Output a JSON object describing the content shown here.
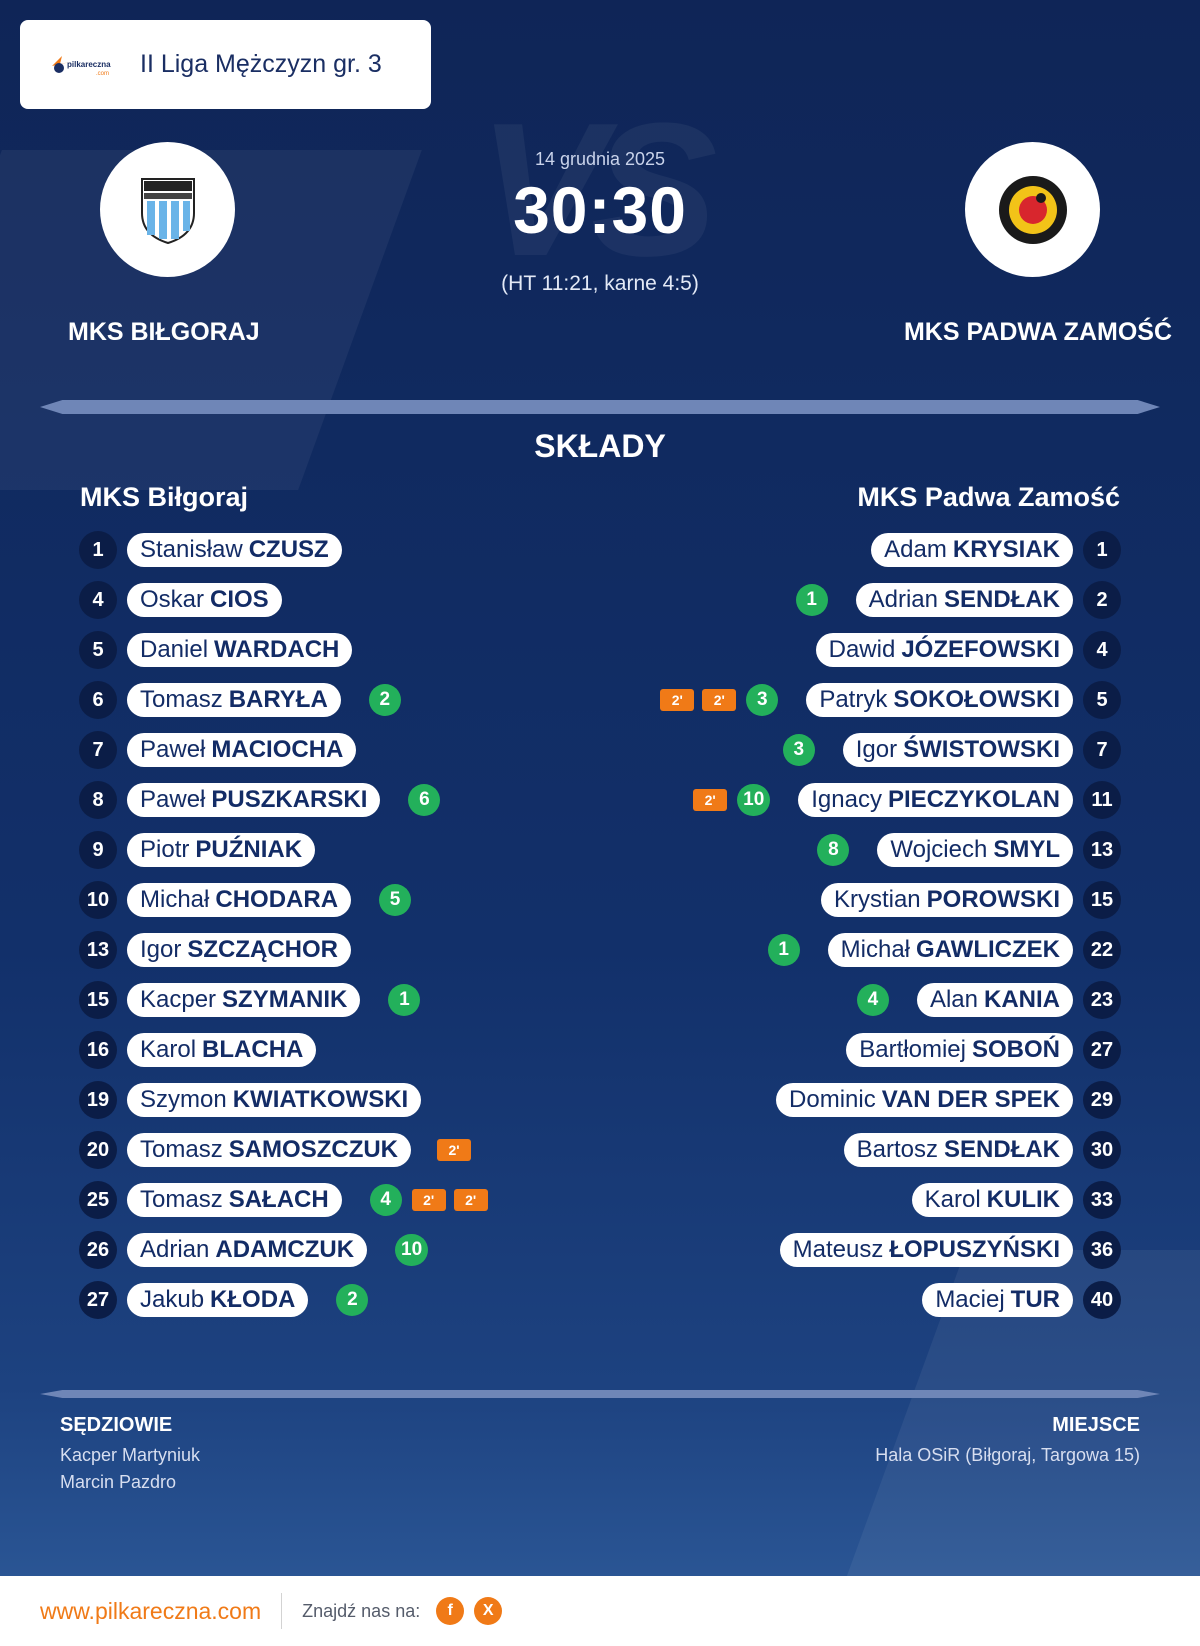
{
  "league": {
    "logo_text": "pilkareczna.com",
    "name": "II Liga Mężczyzn gr. 3"
  },
  "match": {
    "date": "14 grudnia 2025",
    "score": "30:30",
    "note": "(HT 11:21, karne 4:5)",
    "home_team": "MKS BIŁGORAJ",
    "away_team": "MKS PADWA ZAMOŚĆ"
  },
  "lineups": {
    "title": "SKŁADY",
    "home_title": "MKS Biłgoraj",
    "away_title": "MKS Padwa Zamość",
    "home": [
      {
        "number": "1",
        "first": "Stanisław",
        "last": "CZUSZ",
        "goals": "",
        "suspensions": 0
      },
      {
        "number": "4",
        "first": "Oskar",
        "last": "CIOS",
        "goals": "",
        "suspensions": 0
      },
      {
        "number": "5",
        "first": "Daniel",
        "last": "WARDACH",
        "goals": "",
        "suspensions": 0
      },
      {
        "number": "6",
        "first": "Tomasz",
        "last": "BARYŁA",
        "goals": "2",
        "suspensions": 0
      },
      {
        "number": "7",
        "first": "Paweł",
        "last": "MACIOCHA",
        "goals": "",
        "suspensions": 0
      },
      {
        "number": "8",
        "first": "Paweł",
        "last": "PUSZKARSKI",
        "goals": "6",
        "suspensions": 0
      },
      {
        "number": "9",
        "first": "Piotr",
        "last": "PUŹNIAK",
        "goals": "",
        "suspensions": 0
      },
      {
        "number": "10",
        "first": "Michał",
        "last": "CHODARA",
        "goals": "5",
        "suspensions": 0
      },
      {
        "number": "13",
        "first": "Igor",
        "last": "SZCZĄCHOR",
        "goals": "",
        "suspensions": 0
      },
      {
        "number": "15",
        "first": "Kacper",
        "last": "SZYMANIK",
        "goals": "1",
        "suspensions": 0
      },
      {
        "number": "16",
        "first": "Karol",
        "last": "BLACHA",
        "goals": "",
        "suspensions": 0
      },
      {
        "number": "19",
        "first": "Szymon",
        "last": "KWIATKOWSKI",
        "goals": "",
        "suspensions": 0
      },
      {
        "number": "20",
        "first": "Tomasz",
        "last": "SAMOSZCZUK",
        "goals": "",
        "suspensions": 1
      },
      {
        "number": "25",
        "first": "Tomasz",
        "last": "SAŁACH",
        "goals": "4",
        "suspensions": 2
      },
      {
        "number": "26",
        "first": "Adrian",
        "last": "ADAMCZUK",
        "goals": "10",
        "suspensions": 0
      },
      {
        "number": "27",
        "first": "Jakub",
        "last": "KŁODA",
        "goals": "2",
        "suspensions": 0
      }
    ],
    "away": [
      {
        "number": "1",
        "first": "Adam",
        "last": "KRYSIAK",
        "goals": "",
        "suspensions": 0
      },
      {
        "number": "2",
        "first": "Adrian",
        "last": "SENDŁAK",
        "goals": "1",
        "suspensions": 0
      },
      {
        "number": "4",
        "first": "Dawid",
        "last": "JÓZEFOWSKI",
        "goals": "",
        "suspensions": 0
      },
      {
        "number": "5",
        "first": "Patryk",
        "last": "SOKOŁOWSKI",
        "goals": "3",
        "suspensions": 2
      },
      {
        "number": "7",
        "first": "Igor",
        "last": "ŚWISTOWSKI",
        "goals": "3",
        "suspensions": 0
      },
      {
        "number": "11",
        "first": "Ignacy",
        "last": "PIECZYKOLAN",
        "goals": "10",
        "suspensions": 1
      },
      {
        "number": "13",
        "first": "Wojciech",
        "last": "SMYL",
        "goals": "8",
        "suspensions": 0
      },
      {
        "number": "15",
        "first": "Krystian",
        "last": "POROWSKI",
        "goals": "",
        "suspensions": 0
      },
      {
        "number": "22",
        "first": "Michał",
        "last": "GAWLICZEK",
        "goals": "1",
        "suspensions": 0
      },
      {
        "number": "23",
        "first": "Alan",
        "last": "KANIA",
        "goals": "4",
        "suspensions": 0
      },
      {
        "number": "27",
        "first": "Bartłomiej",
        "last": "SOBOŃ",
        "goals": "",
        "suspensions": 0
      },
      {
        "number": "29",
        "first": "Dominic",
        "last": "VAN DER SPEK",
        "goals": "",
        "suspensions": 0
      },
      {
        "number": "30",
        "first": "Bartosz",
        "last": "SENDŁAK",
        "goals": "",
        "suspensions": 0
      },
      {
        "number": "33",
        "first": "Karol",
        "last": "KULIK",
        "goals": "",
        "suspensions": 0
      },
      {
        "number": "36",
        "first": "Mateusz",
        "last": "ŁOPUSZYŃSKI",
        "goals": "",
        "suspensions": 0
      },
      {
        "number": "40",
        "first": "Maciej",
        "last": "TUR",
        "goals": "",
        "suspensions": 0
      }
    ],
    "suspension_label": "2'"
  },
  "referees": {
    "title": "SĘDZIOWIE",
    "names": [
      "Kacper Martyniuk",
      "Marcin Pazdro"
    ]
  },
  "venue": {
    "title": "MIEJSCE",
    "name": "Hala OSiR (Biłgoraj, Targowa 15)"
  },
  "footer": {
    "site": "www.pilkareczna.com",
    "find_us": "Znajdź nas na:",
    "social": [
      {
        "icon": "facebook-icon",
        "glyph": "f"
      },
      {
        "icon": "x-icon",
        "glyph": "X"
      }
    ]
  },
  "colors": {
    "goal_badge": "#23b05b",
    "suspension_badge": "#f07a17",
    "background": "#10265b"
  }
}
